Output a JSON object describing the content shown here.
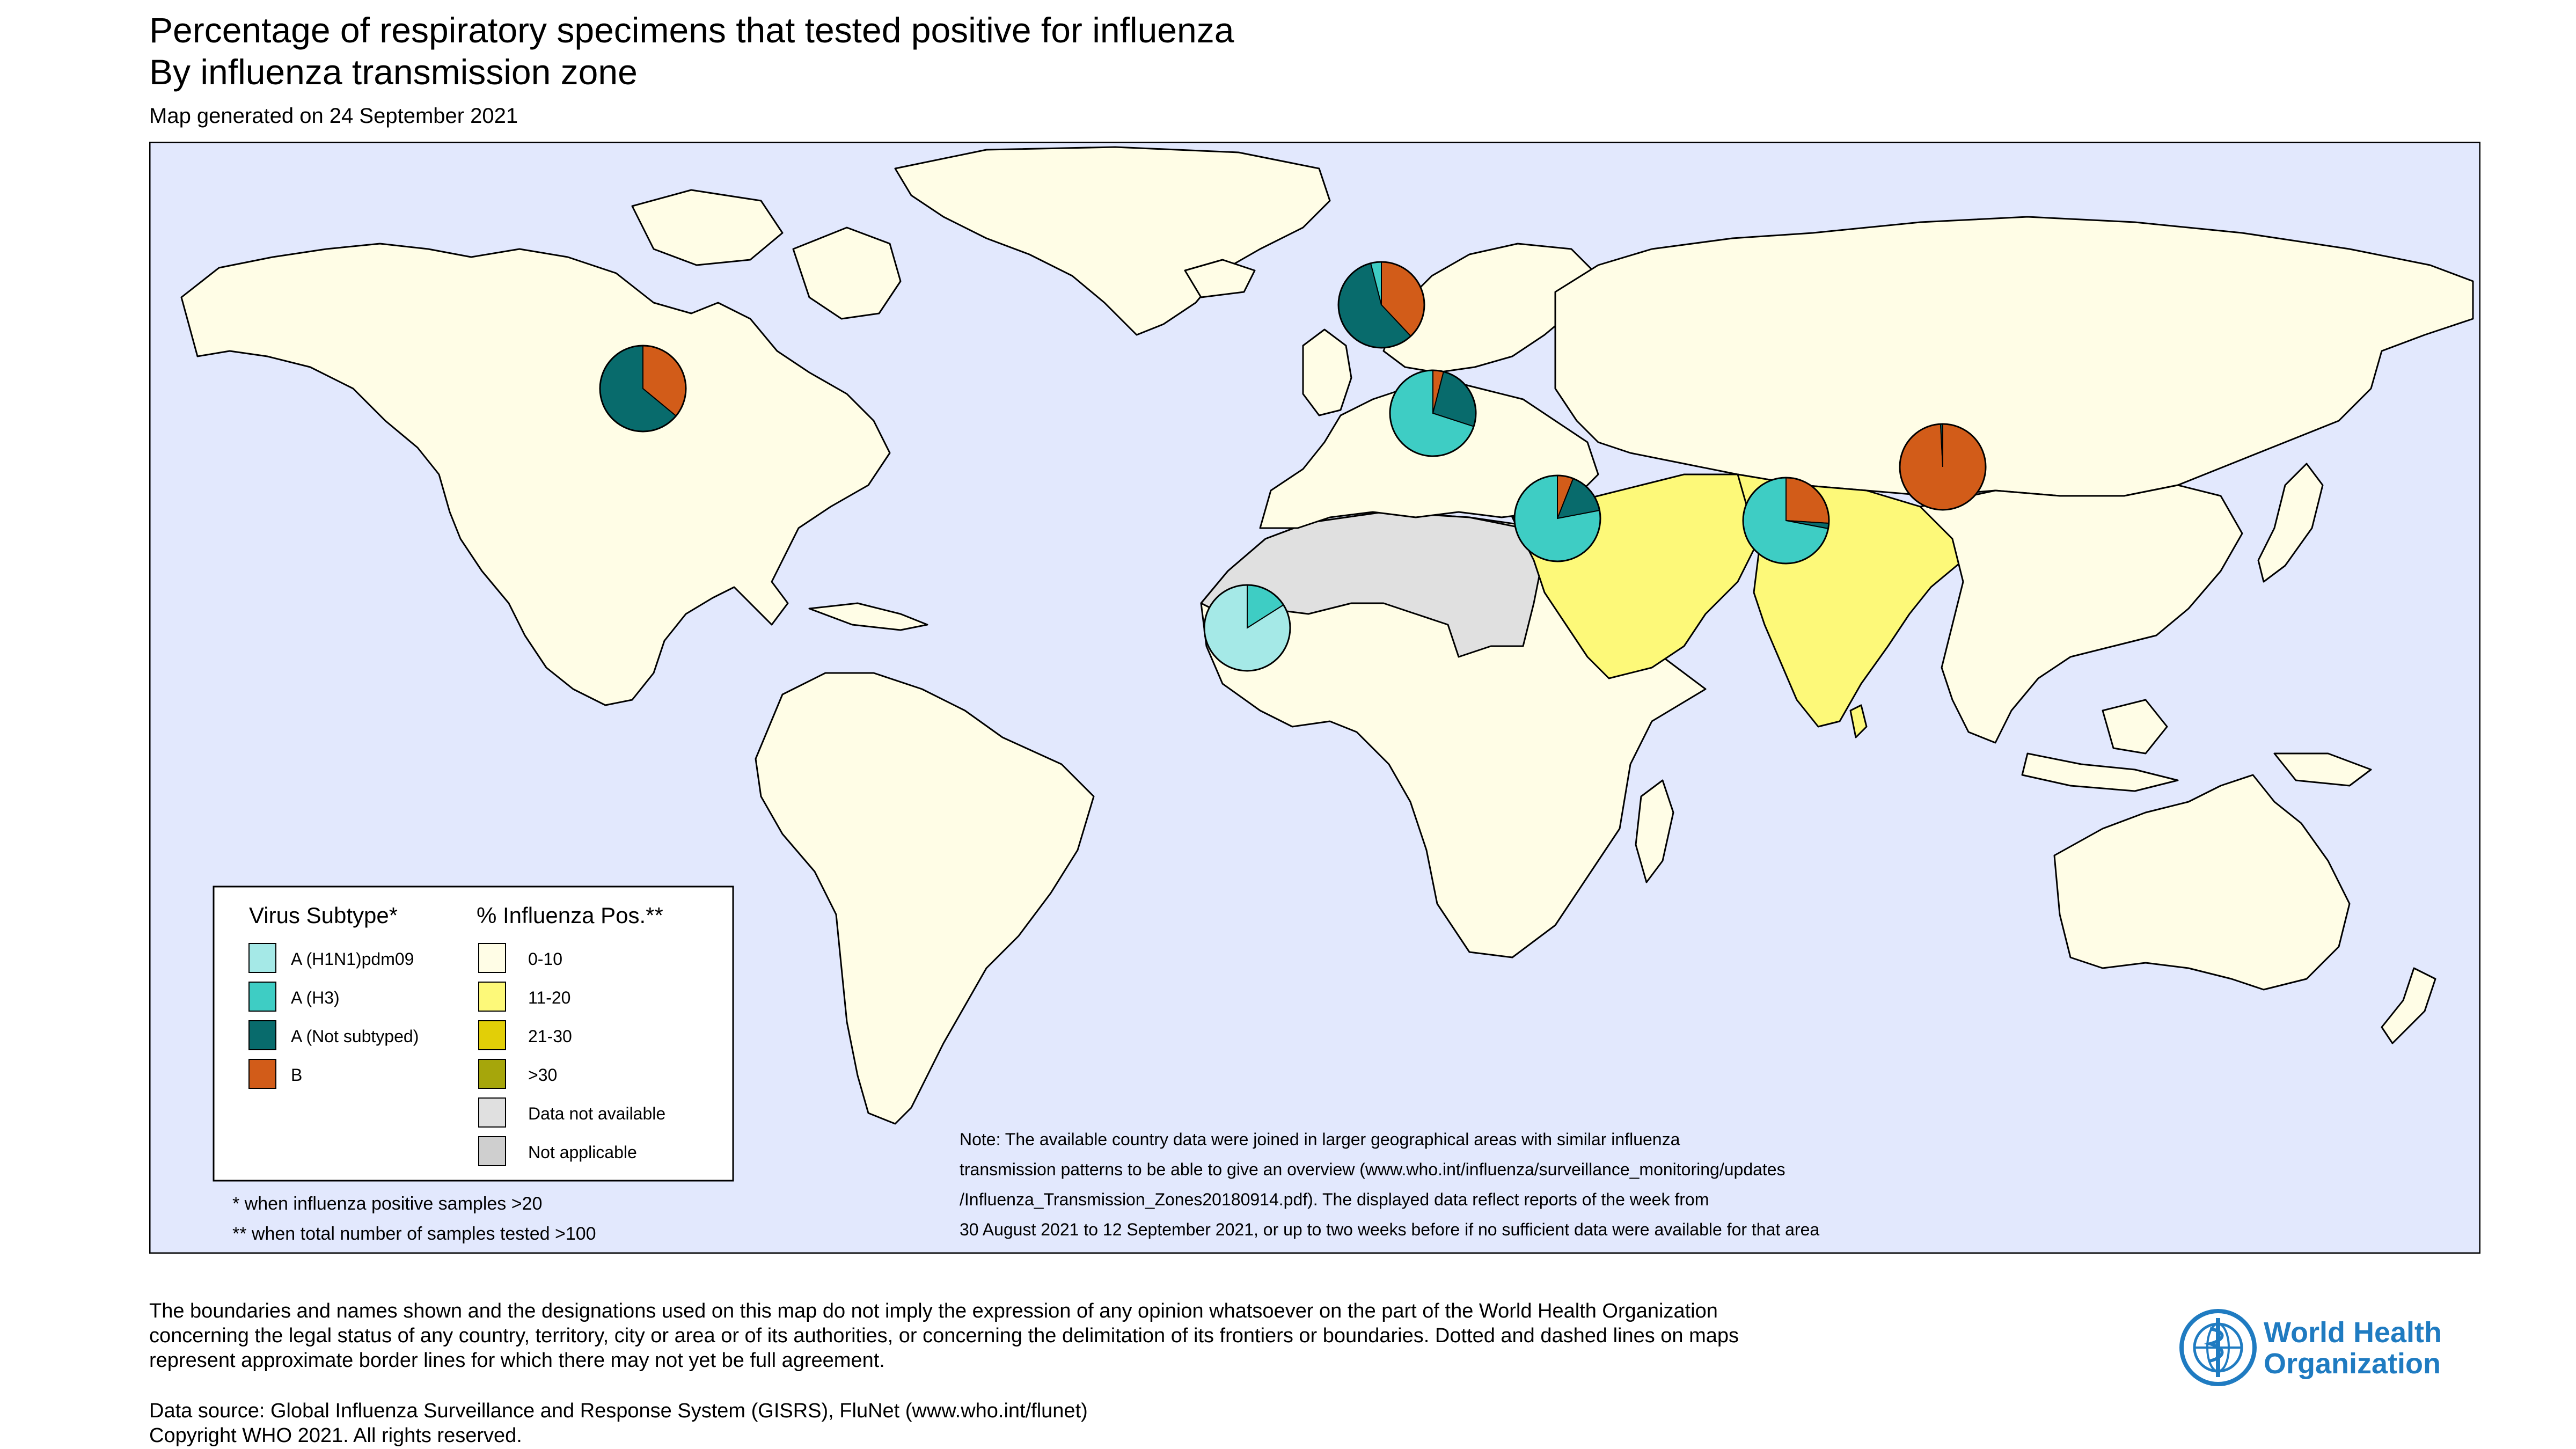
{
  "title": "Percentage of respiratory specimens that tested positive for influenza",
  "subtitle": "By influenza transmission zone",
  "generated": "Map generated on 24 September 2021",
  "colors": {
    "ocean": "#e2e8fd",
    "land_0_10": "#fffde6",
    "land_11_20": "#fdf979",
    "land_21_30": "#e2cf07",
    "land_gt30": "#a6a60b",
    "not_available": "#e0e0e0",
    "not_applicable": "#cfcfcf",
    "h1n1": "#a5e9e7",
    "h3": "#3ecdc4",
    "not_subtyped": "#086b6c",
    "b": "#d25c19"
  },
  "legend": {
    "subtype_title": "Virus Subtype*",
    "subtype_items": [
      {
        "label": "A (H1N1)pdm09",
        "color": "#a5e9e7"
      },
      {
        "label": "A (H3)",
        "color": "#3ecdc4"
      },
      {
        "label": "A (Not subtyped)",
        "color": "#086b6c"
      },
      {
        "label": "B",
        "color": "#d25c19"
      }
    ],
    "pos_title": "% Influenza Pos.**",
    "pos_items": [
      {
        "label": "0-10",
        "color": "#fffde6"
      },
      {
        "label": "11-20",
        "color": "#fdf979"
      },
      {
        "label": "21-30",
        "color": "#e2cf07"
      },
      {
        "label": ">30",
        "color": "#a6a60b"
      },
      {
        "label": "Data not available",
        "color": "#e0e0e0"
      },
      {
        "label": "Not applicable",
        "color": "#cfcfcf"
      }
    ],
    "footnote1": "* when influenza positive samples >20",
    "footnote2": "** when total number of samples tested >100"
  },
  "note_lines": [
    "Note: The available country data were joined in larger geographical areas with similar influenza",
    "transmission patterns to be able to give an overview (www.who.int/influenza/surveillance_monitoring/updates",
    "/Influenza_Transmission_Zones20180914.pdf). The displayed data reflect reports of the week from",
    "30 August 2021 to 12 September 2021, or up to two weeks before if no sufficient data were available for that area"
  ],
  "pies": [
    {
      "zone": "North America",
      "values": {
        "h1n1": 0,
        "h3": 0,
        "not_subtyped": 64,
        "b": 36
      }
    },
    {
      "zone": "Northern Europe",
      "values": {
        "h1n1": 0,
        "h3": 4,
        "not_subtyped": 58,
        "b": 38
      }
    },
    {
      "zone": "South West Europe",
      "values": {
        "h1n1": 0,
        "h3": 70,
        "not_subtyped": 26,
        "b": 4
      }
    },
    {
      "zone": "Western Asia",
      "values": {
        "h1n1": 0,
        "h3": 78,
        "not_subtyped": 16,
        "b": 6
      }
    },
    {
      "zone": "Southern Asia",
      "values": {
        "h1n1": 0,
        "h3": 72,
        "not_subtyped": 2,
        "b": 26
      }
    },
    {
      "zone": "Eastern Asia",
      "values": {
        "h1n1": 0,
        "h3": 0,
        "not_subtyped": 0.8,
        "b": 99.2
      }
    },
    {
      "zone": "Western Africa",
      "values": {
        "h1n1": 84,
        "h3": 16,
        "not_subtyped": 0,
        "b": 0
      }
    }
  ],
  "disclaimer_lines": [
    "The boundaries and names shown and the designations used on this map do not imply the expression of any opinion whatsoever on the part of the World Health Organization",
    "concerning the legal status of any country, territory, city or area or of its authorities, or concerning the delimitation of its frontiers or boundaries. Dotted and dashed lines on maps",
    "represent approximate border lines for which there may not yet be full agreement."
  ],
  "source_lines": [
    "Data source: Global Influenza Surveillance and Response System (GISRS), FluNet (www.who.int/flunet)",
    "Copyright WHO 2021. All rights reserved."
  ],
  "logo": {
    "line1": "World Health",
    "line2": "Organization"
  }
}
